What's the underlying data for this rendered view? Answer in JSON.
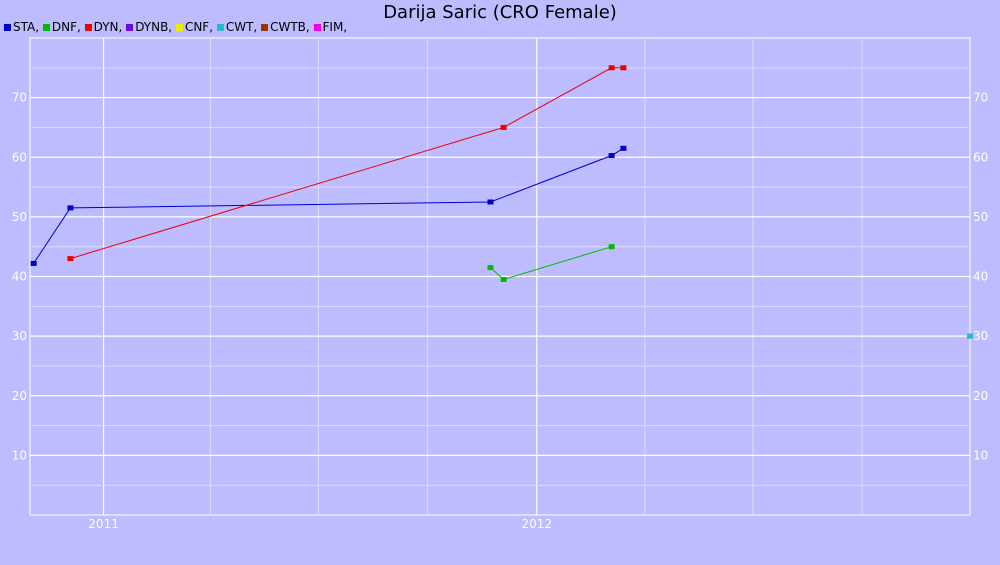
{
  "chart_data": {
    "type": "line",
    "title": "Darija Saric (CRO Female)",
    "xlabel": "",
    "ylabel": "",
    "x_ticks": [
      "2011",
      "2012"
    ],
    "y_ticks": [
      10,
      20,
      30,
      40,
      50,
      60,
      70
    ],
    "ylim": [
      0,
      80
    ],
    "grid": true,
    "legend_position": "top-left",
    "series": [
      {
        "name": "STA",
        "color": "#0000cc",
        "points": [
          {
            "x": "2010-11-03",
            "y": 42.2
          },
          {
            "x": "2010-12-04",
            "y": 51.5
          },
          {
            "x": "2011-11-23",
            "y": 52.5
          },
          {
            "x": "2012-03-04",
            "y": 60.3
          },
          {
            "x": "2012-03-14",
            "y": 61.5
          }
        ]
      },
      {
        "name": "DNF",
        "color": "#00bb00",
        "points": [
          {
            "x": "2011-11-23",
            "y": 41.5
          },
          {
            "x": "2011-12-04",
            "y": 39.5
          },
          {
            "x": "2012-03-04",
            "y": 45.0
          }
        ]
      },
      {
        "name": "DYN",
        "color": "#ee0000",
        "points": [
          {
            "x": "2010-12-04",
            "y": 43.0
          },
          {
            "x": "2011-12-04",
            "y": 65.0
          },
          {
            "x": "2012-03-04",
            "y": 75.0
          },
          {
            "x": "2012-03-14",
            "y": 75.0
          }
        ]
      },
      {
        "name": "DYNB",
        "color": "#6a0ddd",
        "points": []
      },
      {
        "name": "CNF",
        "color": "#eeee00",
        "points": []
      },
      {
        "name": "CWT",
        "color": "#22bbcc",
        "points": [
          {
            "x": "2012-12-31",
            "y": 30.0
          }
        ]
      },
      {
        "name": "CWTB",
        "color": "#993300",
        "points": []
      },
      {
        "name": "FIM",
        "color": "#ee00ee",
        "points": []
      }
    ]
  }
}
